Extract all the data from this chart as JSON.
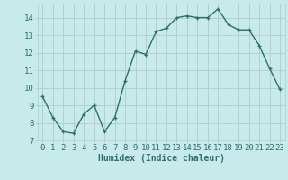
{
  "x": [
    0,
    1,
    2,
    3,
    4,
    5,
    6,
    7,
    8,
    9,
    10,
    11,
    12,
    13,
    14,
    15,
    16,
    17,
    18,
    19,
    20,
    21,
    22,
    23
  ],
  "y": [
    9.5,
    8.3,
    7.5,
    7.4,
    8.5,
    9.0,
    7.5,
    8.3,
    10.4,
    12.1,
    11.9,
    13.2,
    13.4,
    14.0,
    14.1,
    14.0,
    14.0,
    14.5,
    13.6,
    13.3,
    13.3,
    12.4,
    11.1,
    9.9
  ],
  "line_color": "#2d6e6e",
  "bg_color": "#c8eaea",
  "grid_color": "#b0cccc",
  "xlabel": "Humidex (Indice chaleur)",
  "ylim": [
    7,
    14.8
  ],
  "xlim": [
    -0.5,
    23.5
  ],
  "yticks": [
    7,
    8,
    9,
    10,
    11,
    12,
    13,
    14
  ],
  "xticks": [
    0,
    1,
    2,
    3,
    4,
    5,
    6,
    7,
    8,
    9,
    10,
    11,
    12,
    13,
    14,
    15,
    16,
    17,
    18,
    19,
    20,
    21,
    22,
    23
  ],
  "xlabel_fontsize": 7,
  "tick_fontsize": 6.5,
  "marker_size": 3,
  "line_width": 1.0
}
